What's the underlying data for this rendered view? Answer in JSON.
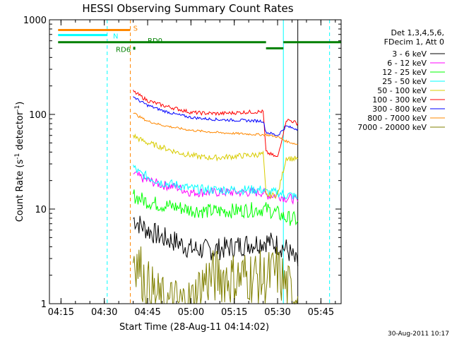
{
  "chart_data": {
    "type": "line",
    "title": "HESSI Observing Summary Count Rates",
    "xlabel": "Start Time (28-Aug-11 04:14:02)",
    "ylabel_main": "Count Rate (s",
    "ylabel_sup1": "-1",
    "ylabel_mid": " detector",
    "ylabel_sup2": "-1",
    "ylabel_end": ")",
    "yscale": "log",
    "xlim": [
      "04:11",
      "05:52"
    ],
    "ylim": [
      1,
      1000
    ],
    "x_ticks": [
      "04:15",
      "04:30",
      "04:45",
      "05:00",
      "05:15",
      "05:30",
      "05:45"
    ],
    "y_ticks": [
      "1",
      "10",
      "100",
      "1000"
    ],
    "legend": {
      "placement": "right",
      "header": [
        "Det 1,3,4,5,6,",
        "FDecim 1, Att 0"
      ],
      "entries": [
        {
          "label": "3 - 6 keV",
          "color": "#000000"
        },
        {
          "label": "6 - 12 keV",
          "color": "#ff00ff"
        },
        {
          "label": "12 - 25 keV",
          "color": "#00ff00"
        },
        {
          "label": "25 - 50 keV",
          "color": "#00ffff"
        },
        {
          "label": "50 - 100 keV",
          "color": "#d8cc00"
        },
        {
          "label": "100 - 300 keV",
          "color": "#ff0000"
        },
        {
          "label": "300 - 800 keV",
          "color": "#0000ff"
        },
        {
          "label": "800 - 7000 keV",
          "color": "#ff8800"
        },
        {
          "label": "7000 - 20000 keV",
          "color": "#808000"
        }
      ]
    },
    "flags": [
      {
        "label": "S",
        "color": "#ff8800",
        "level": 780,
        "start": "04:14",
        "end": "04:39",
        "label_time": "04:40",
        "label_level": 820
      },
      {
        "label": "N",
        "color": "#00ffff",
        "level": 690,
        "start": "04:14",
        "end": "04:31",
        "label_time": "04:33",
        "label_level": 680
      },
      {
        "label": "RD0",
        "color": "#008000",
        "level": 580,
        "start": "04:14",
        "end": "05:55",
        "gap_start": "05:26",
        "gap_end": "05:32",
        "gap_level": 500,
        "label_time": "04:45",
        "label_level": 610
      },
      {
        "label": "RD6",
        "color": "#008000",
        "level": 500,
        "start": "04:40",
        "end": "04:40",
        "label_time": "04:34",
        "label_level": 490
      }
    ],
    "vertical_lines": [
      {
        "time": "04:31",
        "color": "#00ffff",
        "style": "dashed"
      },
      {
        "time": "04:39",
        "color": "#ff8800",
        "style": "dashed"
      },
      {
        "time": "05:48",
        "color": "#00ffff",
        "style": "dashed"
      },
      {
        "time": "05:32",
        "color": "#00ffff",
        "style": "solid"
      },
      {
        "time": "05:37",
        "color": "#000000",
        "style": "solid"
      }
    ],
    "series": [
      {
        "name": "3 - 6 keV",
        "color": "#000000",
        "x": [
          "04:40",
          "04:42",
          "04:45",
          "04:50",
          "04:55",
          "05:00",
          "05:05",
          "05:10",
          "05:15",
          "05:20",
          "05:25",
          "05:26",
          "05:30",
          "05:33",
          "05:35",
          "05:37"
        ],
        "y": [
          8,
          7,
          6,
          5,
          4.5,
          3.8,
          3.7,
          3.8,
          4,
          4.3,
          4.5,
          4.6,
          4.2,
          3.8,
          3.2,
          2.5
        ],
        "noise": 0.12
      },
      {
        "name": "6 - 12 keV",
        "color": "#ff00ff",
        "x": [
          "04:40",
          "04:42",
          "04:45",
          "04:50",
          "04:55",
          "05:00",
          "05:05",
          "05:10",
          "05:15",
          "05:20",
          "05:25",
          "05:26",
          "05:30",
          "05:33",
          "05:35",
          "05:37"
        ],
        "y": [
          24,
          22,
          20,
          18,
          17,
          15,
          15,
          15,
          15,
          15,
          15,
          14,
          14,
          13,
          13,
          12
        ],
        "noise": 0.05
      },
      {
        "name": "12 - 25 keV",
        "color": "#00ff00",
        "x": [
          "04:40",
          "04:42",
          "04:45",
          "04:50",
          "04:55",
          "05:00",
          "05:05",
          "05:10",
          "05:15",
          "05:20",
          "05:25",
          "05:26",
          "05:30",
          "05:33",
          "05:35",
          "05:37"
        ],
        "y": [
          14,
          13,
          12,
          11,
          10.5,
          9.8,
          9.5,
          9.5,
          9.6,
          9.8,
          10,
          10,
          9,
          8,
          8,
          7.5
        ],
        "noise": 0.08
      },
      {
        "name": "25 - 50 keV",
        "color": "#00ffff",
        "x": [
          "04:40",
          "04:42",
          "04:45",
          "04:50",
          "04:55",
          "05:00",
          "05:05",
          "05:10",
          "05:15",
          "05:20",
          "05:25",
          "05:26",
          "05:30",
          "05:33",
          "05:35",
          "05:37"
        ],
        "y": [
          28,
          24,
          22,
          19,
          18,
          16.5,
          16,
          16,
          16,
          16,
          16,
          15,
          15,
          14,
          14,
          13
        ],
        "noise": 0.05
      },
      {
        "name": "50 - 100 keV",
        "color": "#d8cc00",
        "x": [
          "04:40",
          "04:42",
          "04:45",
          "04:50",
          "04:55",
          "05:00",
          "05:05",
          "05:10",
          "05:15",
          "05:20",
          "05:25",
          "05:26",
          "05:30",
          "05:33",
          "05:35",
          "05:37"
        ],
        "y": [
          60,
          55,
          50,
          45,
          40,
          37,
          35,
          35,
          36,
          37,
          38,
          14,
          14,
          35,
          34,
          34
        ],
        "noise": 0.03
      },
      {
        "name": "100 - 300 keV",
        "color": "#ff0000",
        "x": [
          "04:40",
          "04:42",
          "04:45",
          "04:50",
          "04:55",
          "05:00",
          "05:05",
          "05:10",
          "05:15",
          "05:20",
          "05:25",
          "05:26",
          "05:30",
          "05:33",
          "05:35",
          "05:37"
        ],
        "y": [
          175,
          160,
          140,
          125,
          115,
          105,
          103,
          102,
          104,
          106,
          107,
          40,
          35,
          88,
          85,
          80
        ],
        "noise": 0.02
      },
      {
        "name": "300 - 800 keV",
        "color": "#0000ff",
        "x": [
          "04:40",
          "04:42",
          "04:45",
          "04:50",
          "04:55",
          "05:00",
          "05:05",
          "05:10",
          "05:15",
          "05:20",
          "05:25",
          "05:26",
          "05:30",
          "05:33",
          "05:35",
          "05:37"
        ],
        "y": [
          155,
          140,
          125,
          110,
          100,
          93,
          90,
          88,
          87,
          86,
          85,
          65,
          60,
          75,
          72,
          70
        ],
        "noise": 0.015
      },
      {
        "name": "800 - 7000 keV",
        "color": "#ff8800",
        "x": [
          "04:40",
          "04:42",
          "04:45",
          "04:50",
          "04:55",
          "05:00",
          "05:05",
          "05:10",
          "05:15",
          "05:20",
          "05:25",
          "05:26",
          "05:30",
          "05:33",
          "05:35",
          "05:37"
        ],
        "y": [
          105,
          95,
          85,
          77,
          72,
          68,
          66,
          64,
          63,
          62,
          61,
          61,
          58,
          52,
          50,
          48
        ],
        "noise": 0.012
      },
      {
        "name": "7000 - 20000 keV",
        "color": "#808000",
        "x": [
          "04:40",
          "04:42",
          "04:45",
          "04:50",
          "04:55",
          "05:00",
          "05:05",
          "05:10",
          "05:15",
          "05:20",
          "05:25",
          "05:26",
          "05:30",
          "05:33",
          "05:35",
          "05:37"
        ],
        "y": [
          3.5,
          2.5,
          1.5,
          1,
          1,
          1,
          1.8,
          2,
          1.8,
          2,
          1.8,
          1.8,
          2.2,
          1.5,
          1.2,
          1.2
        ],
        "noise": 0.3
      }
    ]
  },
  "footer": {
    "timestamp": "30-Aug-2011 10:17"
  }
}
